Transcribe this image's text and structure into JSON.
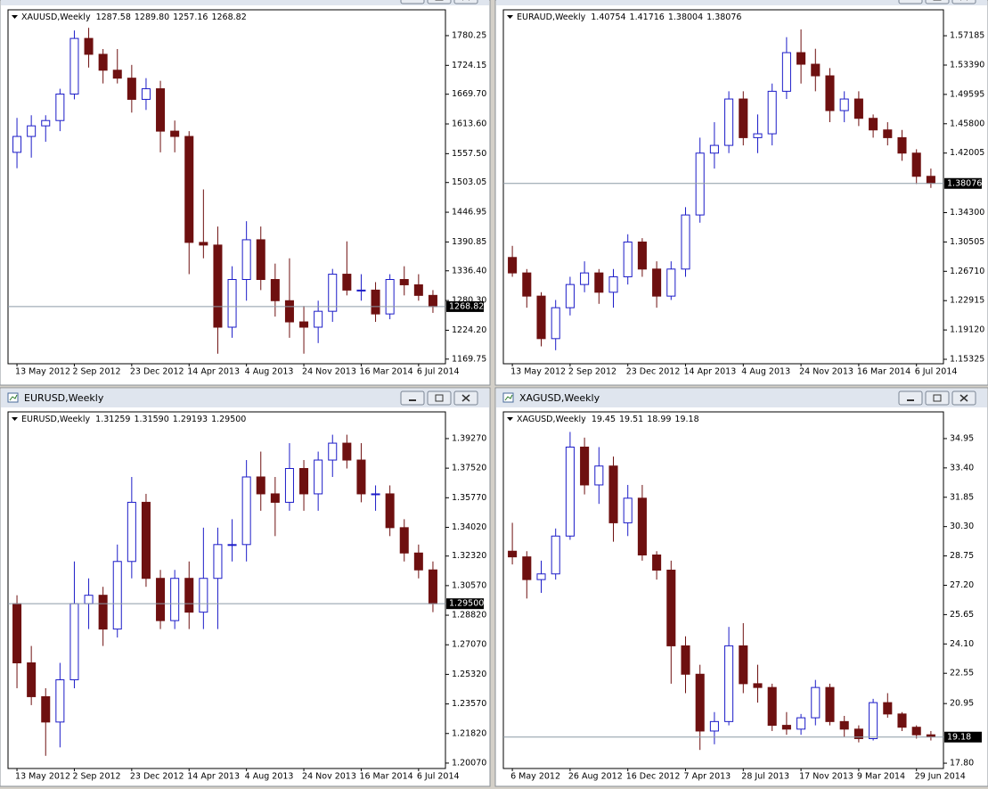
{
  "chart_data": [
    {
      "type": "candlestick",
      "symbol": "XAUUSD,Weekly",
      "last_ohlc": [
        1287.58,
        1289.8,
        1257.16,
        1268.82
      ],
      "last_ohlc_labels": [
        "1287.58",
        "1289.80",
        "1257.16",
        "1268.82"
      ],
      "up_color": "#1c1cc8",
      "down_color": "#6e1010",
      "grid": false,
      "categories": [
        "13 May 2012",
        null,
        null,
        null,
        "2 Sep 2012",
        null,
        null,
        null,
        "23 Dec 2012",
        null,
        null,
        null,
        "14 Apr 2013",
        null,
        null,
        null,
        "4 Aug 2013",
        null,
        null,
        null,
        "24 Nov 2013",
        null,
        null,
        null,
        "16 Mar 2014",
        null,
        null,
        null,
        "6 Jul 2014",
        null
      ],
      "open": [
        1560,
        1590,
        1610,
        1620,
        1670,
        1775,
        1745,
        1715,
        1700,
        1660,
        1680,
        1600,
        1590,
        1390,
        1385,
        1230,
        1320,
        1395,
        1320,
        1280,
        1240,
        1230,
        1260,
        1330,
        1300,
        1300,
        1255,
        1320,
        1310,
        1290
      ],
      "high": [
        1625,
        1630,
        1630,
        1680,
        1790,
        1795,
        1755,
        1755,
        1725,
        1700,
        1695,
        1620,
        1600,
        1490,
        1420,
        1345,
        1430,
        1420,
        1350,
        1360,
        1270,
        1280,
        1340,
        1392,
        1330,
        1315,
        1330,
        1345,
        1330,
        1300
      ],
      "low": [
        1530,
        1550,
        1580,
        1600,
        1660,
        1720,
        1690,
        1690,
        1635,
        1640,
        1560,
        1560,
        1330,
        1360,
        1180,
        1210,
        1280,
        1300,
        1250,
        1210,
        1180,
        1200,
        1240,
        1290,
        1280,
        1240,
        1245,
        1290,
        1280,
        1257
      ],
      "close": [
        1590,
        1610,
        1620,
        1670,
        1775,
        1745,
        1715,
        1700,
        1660,
        1680,
        1600,
        1590,
        1390,
        1385,
        1230,
        1320,
        1395,
        1320,
        1280,
        1240,
        1230,
        1260,
        1330,
        1300,
        1300,
        1255,
        1320,
        1310,
        1290,
        1269
      ],
      "ylim": [
        1161,
        1829
      ],
      "yticks": [
        1780.25,
        1724.15,
        {
          "value": 1669.7,
          "label": "1669.70"
        },
        {
          "value": 1613.6,
          "label": "1613.60"
        },
        {
          "value": 1557.5,
          "label": "1557.50"
        },
        1503.05,
        1446.95,
        1390.85,
        {
          "value": 1336.4,
          "label": "1336.40"
        },
        {
          "value": 1280.3,
          "label": "1280.30"
        },
        {
          "value": 1224.2,
          "label": "1224.20"
        },
        1169.75
      ]
    },
    {
      "type": "candlestick",
      "symbol": "EURAUD,Weekly",
      "last_ohlc": [
        1.40754,
        1.41716,
        1.38004,
        1.38076
      ],
      "last_ohlc_labels": [
        "1.40754",
        "1.41716",
        "1.38004",
        "1.38076"
      ],
      "up_color": "#1c1cc8",
      "down_color": "#6e1010",
      "grid": false,
      "categories": [
        "13 May 2012",
        null,
        null,
        null,
        "2 Sep 2012",
        null,
        null,
        null,
        "23 Dec 2012",
        null,
        null,
        null,
        "14 Apr 2013",
        null,
        null,
        null,
        "4 Aug 2013",
        null,
        null,
        null,
        "24 Nov 2013",
        null,
        null,
        null,
        "16 Mar 2014",
        null,
        null,
        null,
        "6 Jul 2014",
        null
      ],
      "open": [
        1.285,
        1.265,
        1.235,
        1.18,
        1.22,
        1.25,
        1.265,
        1.24,
        1.26,
        1.305,
        1.27,
        1.235,
        1.27,
        1.34,
        1.42,
        1.43,
        1.49,
        1.44,
        1.445,
        1.5,
        1.55,
        1.535,
        1.52,
        1.475,
        1.49,
        1.465,
        1.45,
        1.44,
        1.42,
        1.39
      ],
      "high": [
        1.3,
        1.27,
        1.24,
        1.23,
        1.26,
        1.28,
        1.27,
        1.27,
        1.315,
        1.31,
        1.28,
        1.28,
        1.35,
        1.44,
        1.46,
        1.5,
        1.5,
        1.47,
        1.51,
        1.57,
        1.58,
        1.555,
        1.53,
        1.5,
        1.5,
        1.47,
        1.46,
        1.45,
        1.425,
        1.4
      ],
      "low": [
        1.26,
        1.22,
        1.17,
        1.165,
        1.21,
        1.24,
        1.225,
        1.22,
        1.25,
        1.26,
        1.22,
        1.23,
        1.26,
        1.33,
        1.4,
        1.42,
        1.43,
        1.42,
        1.43,
        1.49,
        1.51,
        1.5,
        1.46,
        1.46,
        1.455,
        1.44,
        1.43,
        1.41,
        1.38,
        1.375
      ],
      "close": [
        1.265,
        1.235,
        1.18,
        1.22,
        1.25,
        1.265,
        1.24,
        1.26,
        1.305,
        1.27,
        1.235,
        1.27,
        1.34,
        1.42,
        1.43,
        1.49,
        1.44,
        1.445,
        1.5,
        1.55,
        1.535,
        1.52,
        1.475,
        1.49,
        1.465,
        1.45,
        1.44,
        1.42,
        1.39,
        1.381
      ],
      "ylim": [
        1.1475,
        1.6054
      ],
      "yticks": [
        1.57185,
        {
          "value": 1.5339,
          "label": "1.53390"
        },
        1.49595,
        {
          "value": 1.458,
          "label": "1.45800"
        },
        1.42005,
        {
          "value": 1.343,
          "label": "1.34300"
        },
        1.30505,
        {
          "value": 1.2671,
          "label": "1.26710"
        },
        1.22915,
        {
          "value": 1.1912,
          "label": "1.19120"
        },
        1.15325
      ]
    },
    {
      "type": "candlestick",
      "symbol": "EURUSD,Weekly",
      "last_ohlc": [
        1.31259,
        1.3159,
        1.29193,
        1.295
      ],
      "last_ohlc_labels": [
        "1.31259",
        "1.31590",
        "1.29193",
        "1.29500"
      ],
      "up_color": "#1c1cc8",
      "down_color": "#6e1010",
      "grid": false,
      "categories": [
        "13 May 2012",
        null,
        null,
        null,
        "2 Sep 2012",
        null,
        null,
        null,
        "23 Dec 2012",
        null,
        null,
        null,
        "14 Apr 2013",
        null,
        null,
        null,
        "4 Aug 2013",
        null,
        null,
        null,
        "24 Nov 2013",
        null,
        null,
        null,
        "16 Mar 2014",
        null,
        null,
        null,
        "6 Jul 2014",
        null
      ],
      "open": [
        1.295,
        1.26,
        1.24,
        1.225,
        1.25,
        1.295,
        1.3,
        1.28,
        1.32,
        1.355,
        1.31,
        1.285,
        1.31,
        1.29,
        1.31,
        1.33,
        1.33,
        1.37,
        1.36,
        1.355,
        1.375,
        1.36,
        1.38,
        1.39,
        1.38,
        1.36,
        1.36,
        1.34,
        1.325,
        1.315
      ],
      "high": [
        1.3,
        1.27,
        1.245,
        1.26,
        1.32,
        1.31,
        1.305,
        1.33,
        1.37,
        1.36,
        1.315,
        1.315,
        1.32,
        1.34,
        1.34,
        1.345,
        1.38,
        1.385,
        1.37,
        1.39,
        1.38,
        1.385,
        1.395,
        1.395,
        1.39,
        1.365,
        1.365,
        1.345,
        1.33,
        1.32
      ],
      "low": [
        1.245,
        1.235,
        1.205,
        1.21,
        1.245,
        1.28,
        1.27,
        1.275,
        1.31,
        1.305,
        1.28,
        1.28,
        1.28,
        1.28,
        1.28,
        1.32,
        1.32,
        1.35,
        1.335,
        1.35,
        1.35,
        1.35,
        1.37,
        1.375,
        1.355,
        1.35,
        1.335,
        1.32,
        1.31,
        1.29
      ],
      "close": [
        1.26,
        1.24,
        1.225,
        1.25,
        1.295,
        1.3,
        1.28,
        1.32,
        1.355,
        1.31,
        1.285,
        1.31,
        1.29,
        1.31,
        1.33,
        1.33,
        1.37,
        1.36,
        1.355,
        1.375,
        1.36,
        1.38,
        1.39,
        1.38,
        1.36,
        1.36,
        1.34,
        1.325,
        1.315,
        1.295
      ],
      "ylim": [
        1.1975,
        1.4085
      ],
      "yticks": [
        {
          "value": 1.3927,
          "label": "1.39270"
        },
        {
          "value": 1.3752,
          "label": "1.37520"
        },
        {
          "value": 1.3577,
          "label": "1.35770"
        },
        {
          "value": 1.3402,
          "label": "1.34020"
        },
        {
          "value": 1.3232,
          "label": "1.32320"
        },
        {
          "value": 1.3057,
          "label": "1.30570"
        },
        {
          "value": 1.2882,
          "label": "1.28820"
        },
        {
          "value": 1.2707,
          "label": "1.27070"
        },
        {
          "value": 1.2532,
          "label": "1.25320"
        },
        {
          "value": 1.2357,
          "label": "1.23570"
        },
        {
          "value": 1.2182,
          "label": "1.21820"
        },
        {
          "value": 1.2007,
          "label": "1.20070"
        }
      ]
    },
    {
      "type": "candlestick",
      "symbol": "XAGUSD,Weekly",
      "last_ohlc": [
        19.45,
        19.51,
        18.99,
        19.18
      ],
      "last_ohlc_labels": [
        "19.45",
        "19.51",
        "18.99",
        "19.18"
      ],
      "up_color": "#1c1cc8",
      "down_color": "#6e1010",
      "grid": false,
      "categories": [
        "6 May 2012",
        null,
        null,
        null,
        "26 Aug 2012",
        null,
        null,
        null,
        "16 Dec 2012",
        null,
        null,
        null,
        "7 Apr 2013",
        null,
        null,
        null,
        "28 Jul 2013",
        null,
        null,
        null,
        "17 Nov 2013",
        null,
        null,
        null,
        "9 Mar 2014",
        null,
        null,
        null,
        "29 Jun 2014",
        null
      ],
      "open": [
        29,
        28.7,
        27.5,
        27.8,
        29.8,
        34.5,
        32.5,
        33.5,
        30.5,
        31.8,
        28.8,
        28,
        24,
        22.5,
        19.5,
        20,
        24,
        22,
        21.8,
        19.8,
        19.6,
        20.2,
        21.8,
        20,
        19.6,
        19.1,
        21,
        20.4,
        19.7,
        19.3
      ],
      "high": [
        30.5,
        29,
        28.5,
        30.2,
        35.3,
        35,
        34.5,
        34,
        32.5,
        32.5,
        29,
        28.5,
        24.5,
        23,
        20.5,
        25,
        25.2,
        23,
        22,
        20.5,
        20.4,
        22.2,
        22,
        20.3,
        19.8,
        21.2,
        21.5,
        20.5,
        19.8,
        19.5
      ],
      "low": [
        28.3,
        26.5,
        26.8,
        27.5,
        29.6,
        32,
        31.5,
        29.5,
        29.8,
        28.5,
        27.5,
        22,
        21.5,
        18.5,
        18.8,
        19.8,
        21.5,
        21,
        19.5,
        19.3,
        19.3,
        19.8,
        19.8,
        19.2,
        18.9,
        19,
        20.2,
        19.5,
        19.1,
        19
      ],
      "close": [
        28.7,
        27.5,
        27.8,
        29.8,
        34.5,
        32.5,
        33.5,
        30.5,
        31.8,
        28.8,
        28,
        24,
        22.5,
        19.5,
        20,
        24,
        22,
        21.8,
        19.8,
        19.6,
        20.2,
        21.8,
        20,
        19.6,
        19.1,
        21,
        20.4,
        19.7,
        19.3,
        19.2
      ],
      "ylim": [
        17.52,
        36.36
      ],
      "yticks": [
        34.95,
        {
          "value": 33.4,
          "label": "33.40"
        },
        31.85,
        {
          "value": 30.3,
          "label": "30.30"
        },
        28.75,
        {
          "value": 27.2,
          "label": "27.20"
        },
        25.65,
        {
          "value": 24.1,
          "label": "24.10"
        },
        22.55,
        20.95,
        {
          "value": 17.8,
          "label": "17.80"
        }
      ]
    }
  ]
}
